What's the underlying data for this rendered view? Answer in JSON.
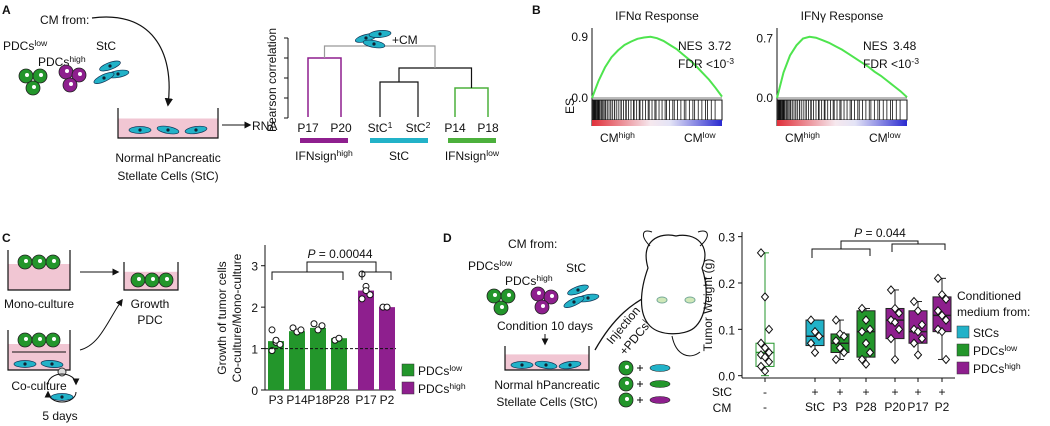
{
  "panels": {
    "A": {
      "label": "A",
      "cm_from": "CM from:",
      "pdcs_low": {
        "text": "PDCs",
        "sup": "low"
      },
      "pdcs_high": {
        "text": "PDCs",
        "sup": "high"
      },
      "stc": "StC",
      "rna": "RNA",
      "cells_line1": "Normal hPancreatic",
      "cells_line2": "Stellate Cells (StC)",
      "plus_cm": "+CM",
      "axis_label": "Pearson correlation",
      "leaves": [
        {
          "text": "P17"
        },
        {
          "text": "P20"
        },
        {
          "text": "StC",
          "sup": "1"
        },
        {
          "text": "StC",
          "sup": "2"
        },
        {
          "text": "P14"
        },
        {
          "text": "P18"
        }
      ],
      "groups": [
        {
          "text": "IFNsign",
          "sup": "high"
        },
        {
          "text": "StC"
        },
        {
          "text": "IFNsign",
          "sup": "low"
        }
      ]
    },
    "B": {
      "label": "B"
    },
    "C": {
      "label": "C",
      "mono": "Mono-culture",
      "co": "Co-culture",
      "growth": "Growth",
      "pdc": "PDC",
      "days": "5 days"
    },
    "D": {
      "label": "D",
      "cm_from": "CM from:",
      "pdcs_low": {
        "text": "PDCs",
        "sup": "low"
      },
      "pdcs_high": {
        "text": "PDCs",
        "sup": "high"
      },
      "stc": "StC",
      "condition": "Condition 10 days",
      "injection": "Injection",
      "plus_pdcs": {
        "text": "+PDCs",
        "sup": "low"
      },
      "cells_line1": "Normal hPancreatic",
      "cells_line2": "Stellate Cells (StC)"
    }
  },
  "chart_data": [
    {
      "type": "line",
      "title": "IFNα Response",
      "ylabel": "ES",
      "ylim": [
        0,
        1
      ],
      "yticks": [
        0.9,
        {
          "value": 0,
          "label": "0.0"
        }
      ],
      "color": "#4ee44e",
      "values": [
        0,
        0.25,
        0.45,
        0.6,
        0.7,
        0.78,
        0.83,
        0.87,
        0.89,
        0.9,
        0.88,
        0.84,
        0.78,
        0.72,
        0.64,
        0.56,
        0.47,
        0.37,
        0.27,
        0.15,
        0.02
      ],
      "nes_label": "NES",
      "nes": 3.72,
      "fdr": {
        "text": "FDR <10",
        "sup": "-3"
      },
      "xlabels": [
        {
          "text": "CM",
          "sup": "high"
        },
        {
          "text": "CM",
          "sup": "low"
        }
      ]
    },
    {
      "type": "line",
      "title": "IFNγ Response",
      "ylim": [
        0,
        0.8
      ],
      "yticks": [
        0.7,
        {
          "value": 0,
          "label": "0.0"
        }
      ],
      "color": "#4ee44e",
      "values": [
        0,
        0.3,
        0.5,
        0.62,
        0.7,
        0.72,
        0.71,
        0.68,
        0.65,
        0.61,
        0.57,
        0.52,
        0.47,
        0.42,
        0.37,
        0.31,
        0.26,
        0.2,
        0.14,
        0.08,
        0.01
      ],
      "nes_label": "NES",
      "nes": 3.48,
      "fdr": {
        "text": "FDR <10",
        "sup": "-3"
      },
      "xlabels": [
        {
          "text": "CM",
          "sup": "high"
        },
        {
          "text": "CM",
          "sup": "low"
        }
      ]
    },
    {
      "type": "bar",
      "ylabel": [
        "Growth of tumor cells",
        "Co-culture/Mono-culture"
      ],
      "categories": [
        "P3",
        "P14",
        "P18",
        "P28",
        "P17",
        "P2"
      ],
      "series": [
        {
          "name": {
            "text": "PDCs",
            "sup": "low"
          },
          "color": "#23962b",
          "values": [
            1.18,
            1.42,
            1.5,
            1.25,
            null,
            null
          ]
        },
        {
          "name": {
            "text": "PDCs",
            "sup": "high"
          },
          "color": "#8e1f8e",
          "values": [
            null,
            null,
            null,
            null,
            2.4,
            2.0
          ]
        }
      ],
      "points": [
        [
          1.45,
          1.15,
          1.1,
          0.95,
          1.2
        ],
        [
          1.5,
          1.4,
          1.45
        ],
        [
          1.6,
          1.45,
          1.55
        ],
        [
          1.2,
          1.25
        ],
        [
          2.8,
          2.5,
          2.3,
          2.2,
          2.4
        ],
        [
          2.0,
          2.0
        ]
      ],
      "ylim": [
        0,
        3.5
      ],
      "yticks": [
        0,
        1,
        2,
        3
      ],
      "refline": 1,
      "annotation": {
        "italic": "P",
        "text": " = 0.00044"
      }
    },
    {
      "type": "box",
      "ylabel": "Tumor Weight (g)",
      "ylim": [
        -0.005,
        0.31
      ],
      "yticks": [
        {
          "value": 0,
          "label": "0.0"
        },
        0.1,
        0.2,
        0.3
      ],
      "row_labels": [
        "StC",
        "CM"
      ],
      "stc_row": [
        "-",
        "+",
        "+",
        "+",
        "+",
        "+",
        "+"
      ],
      "categories": [
        "-",
        "StC",
        "P3",
        "P28",
        "P20",
        "P17",
        "P2"
      ],
      "fills": [
        "#ffffff",
        "#22b2c8",
        "#23962b",
        "#23962b",
        "#8e1f8e",
        "#8e1f8e",
        "#8e1f8e"
      ],
      "edges": [
        "#23962b",
        "#222222",
        "#222222",
        "#222222",
        "#222222",
        "#222222",
        "#222222"
      ],
      "boxes": [
        {
          "min": 0.0,
          "q1": 0.02,
          "median": 0.05,
          "q3": 0.07,
          "max": 0.265
        },
        {
          "min": 0.05,
          "q1": 0.065,
          "median": 0.085,
          "q3": 0.12,
          "max": 0.12
        },
        {
          "min": 0.035,
          "q1": 0.05,
          "median": 0.07,
          "q3": 0.09,
          "max": 0.12
        },
        {
          "min": 0.025,
          "q1": 0.04,
          "median": 0.095,
          "q3": 0.14,
          "max": 0.145
        },
        {
          "min": 0.035,
          "q1": 0.08,
          "median": 0.12,
          "q3": 0.145,
          "max": 0.185
        },
        {
          "min": 0.045,
          "q1": 0.07,
          "median": 0.095,
          "q3": 0.14,
          "max": 0.16
        },
        {
          "min": 0.035,
          "q1": 0.095,
          "median": 0.13,
          "q3": 0.17,
          "max": 0.21
        }
      ],
      "points": [
        [
          0.265,
          0.17,
          0.1,
          0.07,
          0.06,
          0.05,
          0.045,
          0.04,
          0.03,
          0.02,
          0.01
        ],
        [
          0.12,
          0.095,
          0.085,
          0.07,
          0.05
        ],
        [
          0.12,
          0.09,
          0.085,
          0.075,
          0.06,
          0.05,
          0.035
        ],
        [
          0.145,
          0.12,
          0.1,
          0.095,
          0.07,
          0.05,
          0.035,
          0.025
        ],
        [
          0.185,
          0.145,
          0.135,
          0.12,
          0.115,
          0.1,
          0.08,
          0.035
        ],
        [
          0.16,
          0.14,
          0.11,
          0.1,
          0.095,
          0.08,
          0.07,
          0.045
        ],
        [
          0.21,
          0.175,
          0.165,
          0.14,
          0.13,
          0.12,
          0.1,
          0.095,
          0.035
        ]
      ],
      "annotation": {
        "italic": "P",
        "text": " = 0.044"
      },
      "legend_title": [
        "Conditioned",
        "medium from:"
      ],
      "legend": [
        {
          "name": {
            "text": "StCs"
          },
          "color": "#22b2c8"
        },
        {
          "name": {
            "text": "PDCs",
            "sup": "low"
          },
          "color": "#23962b"
        },
        {
          "name": {
            "text": "PDCs",
            "sup": "high"
          },
          "color": "#8e1f8e"
        }
      ]
    }
  ]
}
